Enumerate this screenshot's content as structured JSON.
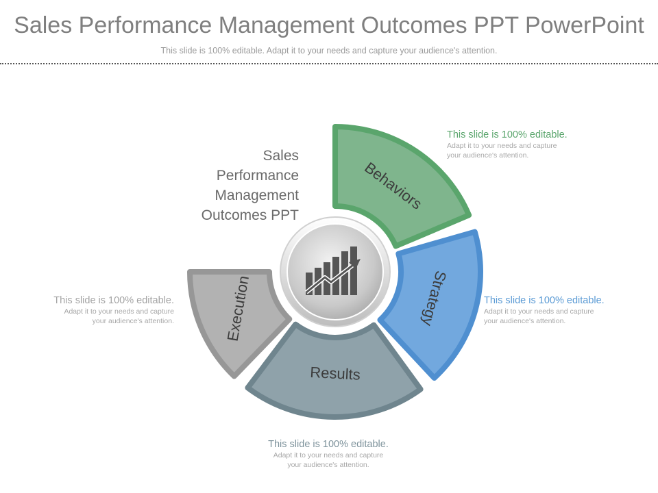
{
  "header": {
    "title": "Sales Performance Management Outcomes PPT PowerPoint",
    "subtitle": "This slide is 100% editable. Adapt it to your needs and capture your audience's attention."
  },
  "center_label": [
    "Sales",
    "Performance",
    "Management",
    "Outcomes PPT"
  ],
  "center_icon": "bar-chart-growth-arrow-icon",
  "segments": [
    {
      "label": "Behaviors",
      "color": "#7fb58d",
      "border": "#5aa56c"
    },
    {
      "label": "Strategy",
      "color": "#72a8de",
      "border": "#4f8fd0"
    },
    {
      "label": "Results",
      "color": "#8fa2aa",
      "border": "#6f858e"
    },
    {
      "label": "Execution",
      "color": "#b2b2b2",
      "border": "#979797"
    }
  ],
  "notes": {
    "behaviors": {
      "head": "This slide is 100% editable.",
      "body": [
        "Adapt it to your needs and capture",
        "your audience's attention."
      ]
    },
    "strategy": {
      "head": "This slide is 100% editable.",
      "body": [
        "Adapt it to your needs and capture",
        "your audience's attention."
      ]
    },
    "execution": {
      "head": "This slide is 100% editable.",
      "body": [
        "Adapt it to your needs and capture",
        "your audience's attention."
      ]
    },
    "results": {
      "head": "This slide is 100% editable.",
      "body": [
        "Adapt it to your needs and capture",
        "your audience's attention."
      ]
    }
  }
}
